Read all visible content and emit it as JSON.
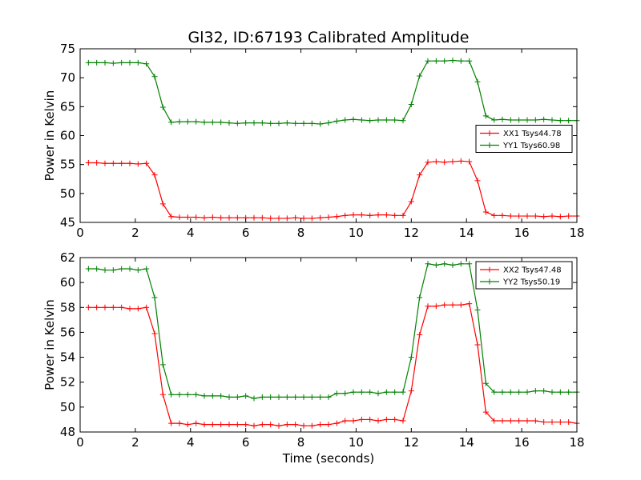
{
  "chart_data": {
    "title": "Gl32, ID:67193 Calibrated Amplitude",
    "xlabel": "Time (seconds)",
    "panels": [
      {
        "type": "line",
        "ylabel": "Power in Kelvin",
        "xlim": [
          0,
          18
        ],
        "ylim": [
          45,
          75
        ],
        "xticks": [
          "0",
          "2",
          "4",
          "6",
          "8",
          "10",
          "12",
          "14",
          "16",
          "18"
        ],
        "yticks": [
          "45",
          "50",
          "55",
          "60",
          "65",
          "70",
          "75"
        ],
        "legend_position": "center-right",
        "series": [
          {
            "name": "XX1 Tsys44.78",
            "color": "#ff0000",
            "x": [
              0.3,
              0.6,
              0.9,
              1.2,
              1.5,
              1.8,
              2.1,
              2.4,
              2.7,
              3.0,
              3.3,
              3.6,
              3.9,
              4.2,
              4.5,
              4.8,
              5.1,
              5.4,
              5.7,
              6.0,
              6.3,
              6.6,
              6.9,
              7.2,
              7.5,
              7.8,
              8.1,
              8.4,
              8.7,
              9.0,
              9.3,
              9.6,
              9.9,
              10.2,
              10.5,
              10.8,
              11.1,
              11.4,
              11.7,
              12.0,
              12.3,
              12.6,
              12.9,
              13.2,
              13.5,
              13.8,
              14.1,
              14.4,
              14.7,
              15.0,
              15.3,
              15.6,
              15.9,
              16.2,
              16.5,
              16.8,
              17.1,
              17.4,
              17.7,
              18.0
            ],
            "y": [
              55.3,
              55.3,
              55.2,
              55.2,
              55.2,
              55.2,
              55.1,
              55.2,
              53.2,
              48.2,
              46.0,
              45.9,
              45.9,
              45.9,
              45.8,
              45.9,
              45.8,
              45.8,
              45.8,
              45.8,
              45.8,
              45.8,
              45.7,
              45.7,
              45.7,
              45.8,
              45.7,
              45.7,
              45.8,
              45.9,
              46.0,
              46.2,
              46.3,
              46.3,
              46.2,
              46.3,
              46.3,
              46.2,
              46.2,
              48.6,
              53.2,
              55.4,
              55.5,
              55.4,
              55.5,
              55.6,
              55.5,
              52.2,
              46.8,
              46.2,
              46.2,
              46.1,
              46.1,
              46.1,
              46.1,
              46.0,
              46.1,
              46.0,
              46.1,
              46.1
            ]
          },
          {
            "name": "YY1 Tsys60.98",
            "color": "#008000",
            "x": [
              0.3,
              0.6,
              0.9,
              1.2,
              1.5,
              1.8,
              2.1,
              2.4,
              2.7,
              3.0,
              3.3,
              3.6,
              3.9,
              4.2,
              4.5,
              4.8,
              5.1,
              5.4,
              5.7,
              6.0,
              6.3,
              6.6,
              6.9,
              7.2,
              7.5,
              7.8,
              8.1,
              8.4,
              8.7,
              9.0,
              9.3,
              9.6,
              9.9,
              10.2,
              10.5,
              10.8,
              11.1,
              11.4,
              11.7,
              12.0,
              12.3,
              12.6,
              12.9,
              13.2,
              13.5,
              13.8,
              14.1,
              14.4,
              14.7,
              15.0,
              15.3,
              15.6,
              15.9,
              16.2,
              16.5,
              16.8,
              17.1,
              17.4,
              17.7,
              18.0
            ],
            "y": [
              72.6,
              72.6,
              72.6,
              72.5,
              72.6,
              72.6,
              72.6,
              72.4,
              70.2,
              64.9,
              62.3,
              62.4,
              62.4,
              62.4,
              62.3,
              62.3,
              62.3,
              62.2,
              62.1,
              62.2,
              62.2,
              62.2,
              62.1,
              62.1,
              62.2,
              62.1,
              62.1,
              62.1,
              62.0,
              62.2,
              62.5,
              62.7,
              62.8,
              62.7,
              62.6,
              62.7,
              62.7,
              62.7,
              62.6,
              65.4,
              70.3,
              72.9,
              72.9,
              72.9,
              73.0,
              72.9,
              72.9,
              69.3,
              63.4,
              62.7,
              62.8,
              62.7,
              62.7,
              62.7,
              62.7,
              62.8,
              62.7,
              62.6,
              62.6,
              62.6
            ]
          }
        ]
      },
      {
        "type": "line",
        "ylabel": "Power in Kelvin",
        "xlim": [
          0,
          18
        ],
        "ylim": [
          48,
          62
        ],
        "xticks": [
          "0",
          "2",
          "4",
          "6",
          "8",
          "10",
          "12",
          "14",
          "16",
          "18"
        ],
        "yticks": [
          "48",
          "50",
          "52",
          "54",
          "56",
          "58",
          "60",
          "62"
        ],
        "legend_position": "top-right",
        "series": [
          {
            "name": "XX2 Tsys47.48",
            "color": "#ff0000",
            "x": [
              0.3,
              0.6,
              0.9,
              1.2,
              1.5,
              1.8,
              2.1,
              2.4,
              2.7,
              3.0,
              3.3,
              3.6,
              3.9,
              4.2,
              4.5,
              4.8,
              5.1,
              5.4,
              5.7,
              6.0,
              6.3,
              6.6,
              6.9,
              7.2,
              7.5,
              7.8,
              8.1,
              8.4,
              8.7,
              9.0,
              9.3,
              9.6,
              9.9,
              10.2,
              10.5,
              10.8,
              11.1,
              11.4,
              11.7,
              12.0,
              12.3,
              12.6,
              12.9,
              13.2,
              13.5,
              13.8,
              14.1,
              14.4,
              14.7,
              15.0,
              15.3,
              15.6,
              15.9,
              16.2,
              16.5,
              16.8,
              17.1,
              17.4,
              17.7,
              18.0
            ],
            "y": [
              58.0,
              58.0,
              58.0,
              58.0,
              58.0,
              57.9,
              57.9,
              58.0,
              55.9,
              51.0,
              48.7,
              48.7,
              48.6,
              48.7,
              48.6,
              48.6,
              48.6,
              48.6,
              48.6,
              48.6,
              48.5,
              48.6,
              48.6,
              48.5,
              48.6,
              48.6,
              48.5,
              48.5,
              48.6,
              48.6,
              48.7,
              48.9,
              48.9,
              49.0,
              49.0,
              48.9,
              49.0,
              49.0,
              48.9,
              51.3,
              55.8,
              58.1,
              58.1,
              58.2,
              58.2,
              58.2,
              58.3,
              55.0,
              49.6,
              48.9,
              48.9,
              48.9,
              48.9,
              48.9,
              48.9,
              48.8,
              48.8,
              48.8,
              48.8,
              48.7
            ]
          },
          {
            "name": "YY2 Tsys50.19",
            "color": "#008000",
            "x": [
              0.3,
              0.6,
              0.9,
              1.2,
              1.5,
              1.8,
              2.1,
              2.4,
              2.7,
              3.0,
              3.3,
              3.6,
              3.9,
              4.2,
              4.5,
              4.8,
              5.1,
              5.4,
              5.7,
              6.0,
              6.3,
              6.6,
              6.9,
              7.2,
              7.5,
              7.8,
              8.1,
              8.4,
              8.7,
              9.0,
              9.3,
              9.6,
              9.9,
              10.2,
              10.5,
              10.8,
              11.1,
              11.4,
              11.7,
              12.0,
              12.3,
              12.6,
              12.9,
              13.2,
              13.5,
              13.8,
              14.1,
              14.4,
              14.7,
              15.0,
              15.3,
              15.6,
              15.9,
              16.2,
              16.5,
              16.8,
              17.1,
              17.4,
              17.7,
              18.0
            ],
            "y": [
              61.1,
              61.1,
              61.0,
              61.0,
              61.1,
              61.1,
              61.0,
              61.1,
              58.8,
              53.4,
              51.0,
              51.0,
              51.0,
              51.0,
              50.9,
              50.9,
              50.9,
              50.8,
              50.8,
              50.9,
              50.7,
              50.8,
              50.8,
              50.8,
              50.8,
              50.8,
              50.8,
              50.8,
              50.8,
              50.8,
              51.1,
              51.1,
              51.2,
              51.2,
              51.2,
              51.1,
              51.2,
              51.2,
              51.2,
              54.0,
              58.8,
              61.5,
              61.4,
              61.5,
              61.4,
              61.5,
              61.5,
              57.8,
              51.9,
              51.2,
              51.2,
              51.2,
              51.2,
              51.2,
              51.3,
              51.3,
              51.2,
              51.2,
              51.2,
              51.2
            ]
          }
        ]
      }
    ]
  }
}
